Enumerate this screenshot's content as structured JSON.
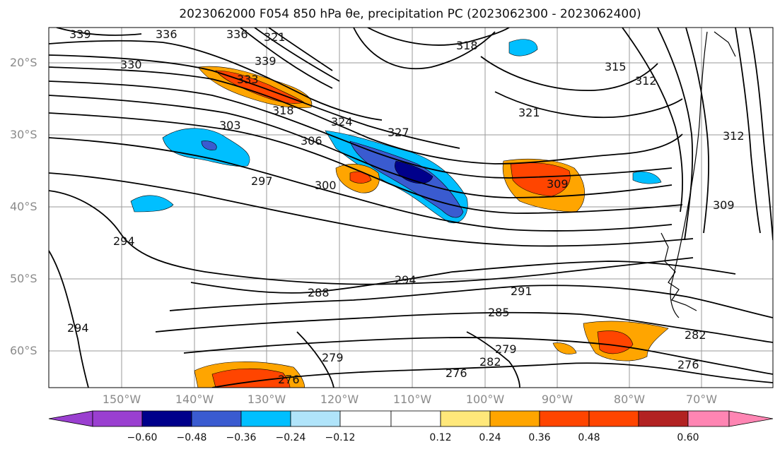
{
  "title": "2023062000 F054 850 hPa θe, precipitation PC (2023062300 - 2023062400)",
  "latitude_labels": [
    "20°S",
    "30°S",
    "40°S",
    "50°S",
    "60°S"
  ],
  "longitude_labels": [
    "150°W",
    "140°W",
    "130°W",
    "120°W",
    "110°W",
    "100°W",
    "90°W",
    "80°W",
    "70°W"
  ],
  "contour_labels": [
    "339",
    "336",
    "336",
    "321",
    "330",
    "333",
    "339",
    "318",
    "318",
    "315",
    "312",
    "321",
    "324",
    "327",
    "303",
    "306",
    "312",
    "297",
    "300",
    "309",
    "309",
    "294",
    "294",
    "288",
    "291",
    "285",
    "294",
    "282",
    "279",
    "279",
    "282",
    "276",
    "276",
    "276"
  ],
  "colorbar": {
    "ticks": [
      "−0.60",
      "−0.48",
      "−0.36",
      "−0.24",
      "−0.12",
      "0.12",
      "0.24",
      "0.36",
      "0.48",
      "0.60"
    ],
    "colors": [
      "#9a3fd0",
      "#00008b",
      "#3a5bd0",
      "#00bfff",
      "#b0e4fa",
      "#ffffff",
      "#ffe87a",
      "#ffa500",
      "#ff4500",
      "#b22222",
      "#ff85b3"
    ]
  }
}
